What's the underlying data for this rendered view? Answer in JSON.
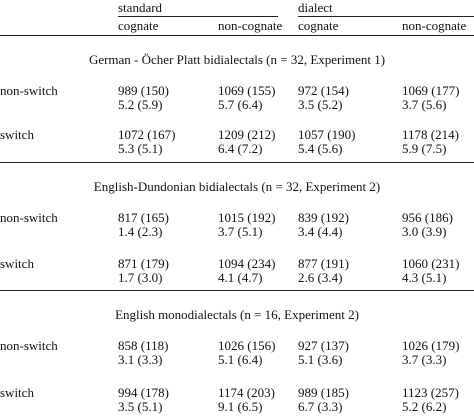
{
  "header": {
    "group_standard": "standard",
    "group_dialect": "dialect",
    "columns": [
      "cognate",
      "non-cognate",
      "cognate",
      "non-cognate"
    ]
  },
  "sections": [
    {
      "title": "German - Öcher Platt bidialectals (n = 32, Experiment 1)",
      "rows": [
        {
          "label": "non-switch",
          "rt": [
            "989 (150)",
            "1069 (155)",
            "972 (154)",
            "1069 (177)"
          ],
          "err": [
            "5.2 (5.9)",
            "5.7 (6.4)",
            "3.5 (5.2)",
            "3.7 (5.6)"
          ]
        },
        {
          "label": "switch",
          "rt": [
            "1072 (167)",
            "1209 (212)",
            "1057 (190)",
            "1178 (214)"
          ],
          "err": [
            "5.3 (5.1)",
            "6.4 (7.2)",
            "5.4 (5.6)",
            "5.9 (7.5)"
          ]
        }
      ]
    },
    {
      "title": "English-Dundonian bidialectals (n = 32, Experiment 2)",
      "rows": [
        {
          "label": "non-switch",
          "rt": [
            "817 (165)",
            "1015 (192)",
            "839 (192)",
            "956 (186)"
          ],
          "err": [
            "1.4 (2.3)",
            "3.7 (5.1)",
            "3.4 (4.4)",
            "3.0 (3.9)"
          ]
        },
        {
          "label": "switch",
          "rt": [
            "871 (179)",
            "1094 (234)",
            "877 (191)",
            "1060 (231)"
          ],
          "err": [
            "1.7 (3.0)",
            "4.1 (4.7)",
            "2.6 (3.4)",
            "4.3 (5.1)"
          ]
        }
      ]
    },
    {
      "title": "English monodialectals (n = 16, Experiment 2)",
      "rows": [
        {
          "label": "non-switch",
          "rt": [
            "858 (118)",
            "1026 (156)",
            "927 (137)",
            "1026 (179)"
          ],
          "err": [
            "3.1 (3.3)",
            "5.1 (6.4)",
            "5.1 (3.6)",
            "3.7 (3.3)"
          ]
        },
        {
          "label": "switch",
          "rt": [
            "994 (178)",
            "1174 (203)",
            "989 (185)",
            "1123 (257)"
          ],
          "err": [
            "3.5 (5.1)",
            "9.1 (6.5)",
            "6.7 (3.3)",
            "5.2 (6.2)"
          ]
        }
      ]
    }
  ]
}
